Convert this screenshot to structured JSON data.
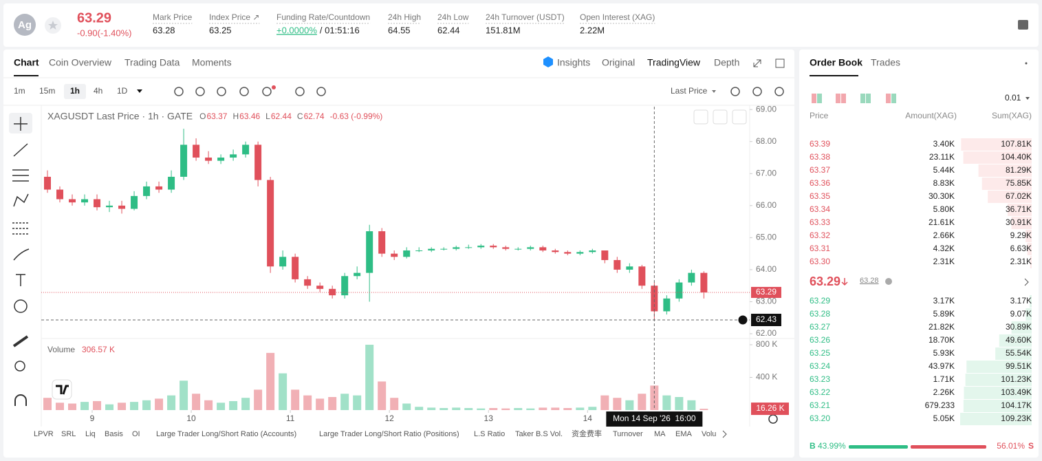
{
  "header": {
    "symbol_icon": "Ag",
    "price": "63.29",
    "change": "-0.90(-1.40%)",
    "stats": [
      {
        "label": "Mark Price",
        "value": "63.28"
      },
      {
        "label": "Index Price ↗",
        "value": "63.25"
      },
      {
        "label": "Funding Rate/Countdown",
        "value": "+0.0000%",
        "value2": "/ 01:51:16"
      },
      {
        "label": "24h High",
        "value": "64.55"
      },
      {
        "label": "24h Low",
        "value": "62.44"
      },
      {
        "label": "24h Turnover (USDT)",
        "value": "151.81M"
      },
      {
        "label": "Open Interest (XAG)",
        "value": "2.22M"
      }
    ]
  },
  "tabs": [
    "Chart",
    "Coin Overview",
    "Trading Data",
    "Moments"
  ],
  "view_tabs": [
    "Insights",
    "Original",
    "TradingView",
    "Depth"
  ],
  "intervals": [
    "1m",
    "15m",
    "1h",
    "4h",
    "1D"
  ],
  "price_source": "Last Price",
  "indicators": [
    "LPVR",
    "SRL",
    "Liq",
    "Basis",
    "OI",
    "Large Trader Long/Short Ratio (Accounts)",
    "Large Trader Long/Short Ratio (Positions)",
    "L.S Ratio",
    "Taker B.S Vol.",
    "资金费率",
    "Turnover",
    "MA",
    "EMA",
    "Volu"
  ],
  "chart_data": {
    "type": "candlestick",
    "title": "XAGUSDT Last Price · 1h · GATE",
    "ohlc_legend": [
      {
        "label": "O",
        "value": "63.37"
      },
      {
        "label": "H",
        "value": "63.46"
      },
      {
        "label": "L",
        "value": "62.44"
      },
      {
        "label": "C",
        "value": "62.74"
      }
    ],
    "change": "-0.63 (-0.99%)",
    "open": [
      66.9,
      66.5,
      66.2,
      66.1,
      66.2,
      65.95,
      66.0,
      65.9,
      66.3,
      66.6,
      66.5,
      66.9,
      67.9,
      67.5,
      67.4,
      67.5,
      67.6,
      67.9,
      66.8,
      64.1,
      64.4,
      63.7,
      63.5,
      63.4,
      63.2,
      63.8,
      63.9,
      65.2,
      64.5,
      64.4,
      64.6,
      64.6,
      64.65,
      64.65,
      64.7,
      64.7,
      64.75,
      64.7,
      64.65,
      64.65,
      64.7,
      64.6,
      64.55,
      64.5,
      64.55,
      64.6,
      64.3,
      64.0,
      64.1,
      63.5,
      62.7,
      63.1,
      63.6,
      63.9
    ],
    "high": [
      67.1,
      66.6,
      66.35,
      66.35,
      66.35,
      66.15,
      66.15,
      66.45,
      66.75,
      66.75,
      67.1,
      68.4,
      68.1,
      67.7,
      67.6,
      67.75,
      68.0,
      68.0,
      66.9,
      64.6,
      64.5,
      63.8,
      63.6,
      63.5,
      63.9,
      64.1,
      65.4,
      65.3,
      64.6,
      64.7,
      64.7,
      64.7,
      64.7,
      64.75,
      64.78,
      64.8,
      64.8,
      64.75,
      64.7,
      64.75,
      64.75,
      64.65,
      64.6,
      64.6,
      64.65,
      64.6,
      64.4,
      64.2,
      64.15,
      63.6,
      63.2,
      63.7,
      64.0,
      63.95
    ],
    "low": [
      66.4,
      66.1,
      66.0,
      66.0,
      65.85,
      65.8,
      65.75,
      65.85,
      66.2,
      66.4,
      66.4,
      66.8,
      67.4,
      67.3,
      67.3,
      67.4,
      67.5,
      66.6,
      63.9,
      64.0,
      63.6,
      63.4,
      63.3,
      63.1,
      63.1,
      63.7,
      63.0,
      64.4,
      64.3,
      64.35,
      64.55,
      64.55,
      64.6,
      64.6,
      64.65,
      64.65,
      64.65,
      64.6,
      64.6,
      64.6,
      64.55,
      64.5,
      64.45,
      64.45,
      64.5,
      64.2,
      63.9,
      63.9,
      63.4,
      62.44,
      62.6,
      63.0,
      63.5,
      63.1
    ],
    "close": [
      66.5,
      66.2,
      66.1,
      66.2,
      65.95,
      66.0,
      65.9,
      66.3,
      66.6,
      66.5,
      66.9,
      67.9,
      67.5,
      67.4,
      67.5,
      67.6,
      67.9,
      66.8,
      64.1,
      64.4,
      63.7,
      63.5,
      63.4,
      63.2,
      63.8,
      63.9,
      65.2,
      64.5,
      64.4,
      64.6,
      64.6,
      64.65,
      64.65,
      64.7,
      64.7,
      64.75,
      64.7,
      64.65,
      64.65,
      64.7,
      64.6,
      64.55,
      64.5,
      64.55,
      64.6,
      64.3,
      64.0,
      64.1,
      63.5,
      62.7,
      63.1,
      63.6,
      63.9,
      63.29
    ],
    "up_color": "#2ebd85",
    "down_color": "#e0505b",
    "xlim": [
      0,
      57.2
    ],
    "xticks": [
      {
        "value": 4.11,
        "label": "9"
      },
      {
        "value": 12.11,
        "label": "10"
      },
      {
        "value": 20.11,
        "label": "11"
      },
      {
        "value": 28.11,
        "label": "12"
      },
      {
        "value": 36.11,
        "label": "13"
      },
      {
        "value": 44.11,
        "label": "14"
      }
    ],
    "ylim": [
      61.85,
      69.09
    ],
    "yticks": [
      {
        "value": 62,
        "label": "62.00"
      },
      {
        "value": 63,
        "label": "63.00"
      },
      {
        "value": 64,
        "label": "64.00"
      },
      {
        "value": 65,
        "label": "65.00"
      },
      {
        "value": 66,
        "label": "66.00"
      },
      {
        "value": 67,
        "label": "67.00"
      },
      {
        "value": 68,
        "label": "68.00"
      },
      {
        "value": 69,
        "label": "69.00"
      }
    ],
    "last_price": {
      "value": 63.29,
      "label": "63.29"
    },
    "crosshair_price": {
      "value": 62.43,
      "label": "62.43"
    },
    "crosshair_time": "Mon 14 Sep '26  16:00",
    "volume_title": "Volume",
    "volume_value": "306.57 K",
    "volume": [
      150000,
      90000,
      80000,
      100000,
      110000,
      70000,
      90000,
      100000,
      120000,
      140000,
      180000,
      360000,
      200000,
      120000,
      90000,
      110000,
      150000,
      250000,
      700000,
      450000,
      250000,
      180000,
      140000,
      160000,
      200000,
      180000,
      800000,
      350000,
      150000,
      80000,
      40000,
      30000,
      25000,
      30000,
      25000,
      20000,
      25000,
      20000,
      25000,
      20000,
      30000,
      30000,
      25000,
      30000,
      40000,
      180000,
      150000,
      120000,
      200000,
      300000,
      180000,
      160000,
      120000,
      16260
    ],
    "vlim": [
      0,
      876000
    ],
    "vticks": [
      {
        "value": 400000,
        "label": "400 K"
      },
      {
        "value": 800000,
        "label": "800 K"
      }
    ],
    "volume_marker": {
      "value": 16260,
      "label": "16.26 K"
    }
  },
  "order_book": {
    "tabs": [
      "Order Book",
      "Trades"
    ],
    "precision": "0.01",
    "columns": [
      "Price",
      "Amount(XAG)",
      "Sum(XAG)"
    ],
    "asks": [
      [
        "63.39",
        "3.40K",
        "107.81K"
      ],
      [
        "63.38",
        "23.11K",
        "104.40K"
      ],
      [
        "63.37",
        "5.44K",
        "81.29K"
      ],
      [
        "63.36",
        "8.83K",
        "75.85K"
      ],
      [
        "63.35",
        "30.30K",
        "67.02K"
      ],
      [
        "63.34",
        "5.80K",
        "36.71K"
      ],
      [
        "63.33",
        "21.61K",
        "30.91K"
      ],
      [
        "63.32",
        "2.66K",
        "9.29K"
      ],
      [
        "63.31",
        "4.32K",
        "6.63K"
      ],
      [
        "63.30",
        "2.31K",
        "2.31K"
      ]
    ],
    "mid_price": "63.29",
    "mark_price": "63.28",
    "bids": [
      [
        "63.29",
        "3.17K",
        "3.17K"
      ],
      [
        "63.28",
        "5.89K",
        "9.07K"
      ],
      [
        "63.27",
        "21.82K",
        "30.89K"
      ],
      [
        "63.26",
        "18.70K",
        "49.60K"
      ],
      [
        "63.25",
        "5.93K",
        "55.54K"
      ],
      [
        "63.24",
        "43.97K",
        "99.51K"
      ],
      [
        "63.23",
        "1.71K",
        "101.23K"
      ],
      [
        "63.22",
        "2.26K",
        "103.49K"
      ],
      [
        "63.21",
        "679.233",
        "104.17K"
      ],
      [
        "63.20",
        "5.05K",
        "109.23K"
      ]
    ],
    "buy_label": "B",
    "buy_ratio": "43.99%",
    "sell_ratio": "56.01%",
    "sell_label": "S"
  }
}
